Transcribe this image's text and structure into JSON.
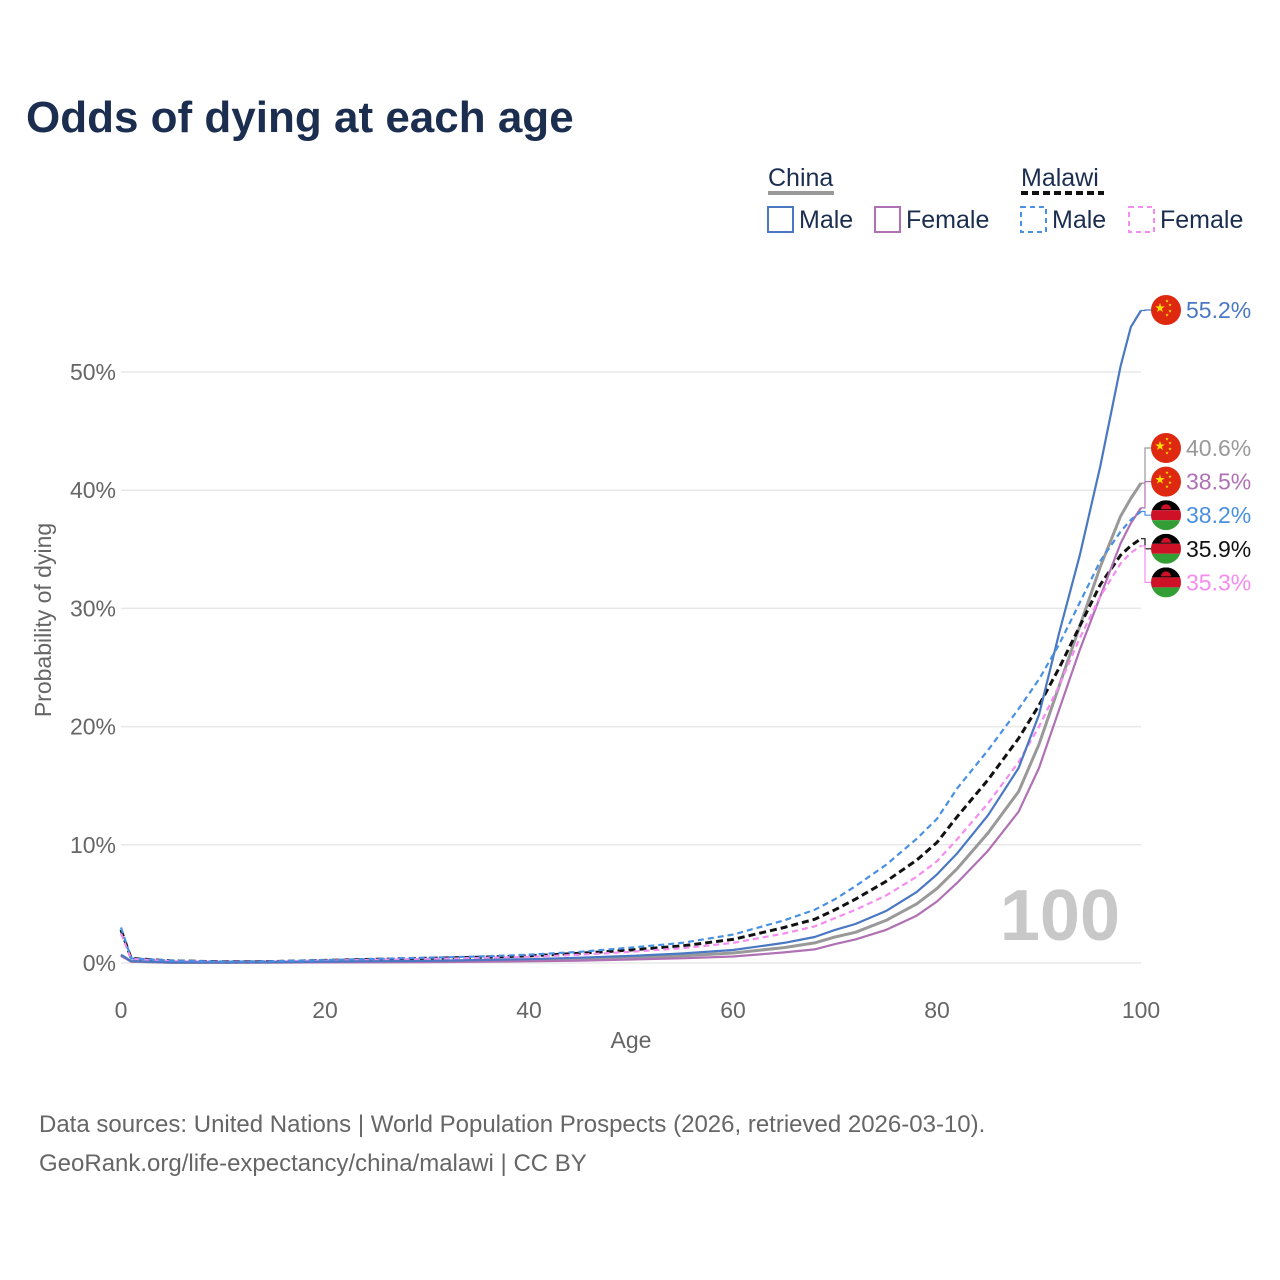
{
  "title": "Odds of dying at each age",
  "legend": {
    "groups": [
      {
        "name": "China",
        "items": [
          {
            "label": "Male",
            "color": "#4a78c2",
            "dashed": false
          },
          {
            "label": "Female",
            "color": "#b071b4",
            "dashed": false
          }
        ]
      },
      {
        "name": "Malawi",
        "items": [
          {
            "label": "Male",
            "color": "#4a90e2",
            "dashed": true
          },
          {
            "label": "Female",
            "color": "#f58cf0",
            "dashed": true
          }
        ]
      }
    ]
  },
  "colors": {
    "china_total": "#999999",
    "malawi_total": "#111111",
    "gridline": "#e8e8e8",
    "title": "#1b2e4f",
    "axis_text": "#666666",
    "watermark": "#c8c8c8"
  },
  "watermark": "100",
  "source_lines": [
    "Data sources: United Nations | World Population Prospects (2026, retrieved 2026-03-10).",
    "GeoRank.org/life-expectancy/china/malawi | CC BY"
  ],
  "chart_data": {
    "type": "line",
    "title": "Odds of dying at each age",
    "xlabel": "Age",
    "ylabel": "Probability of dying",
    "xlim": [
      0,
      100
    ],
    "ylim": [
      0,
      55
    ],
    "x_ticks": [
      0,
      20,
      40,
      60,
      80,
      100
    ],
    "y_ticks": [
      0,
      10,
      20,
      30,
      40,
      50
    ],
    "y_tick_labels": [
      "0%",
      "10%",
      "20%",
      "30%",
      "40%",
      "50%"
    ],
    "x": [
      0,
      1,
      5,
      10,
      15,
      20,
      25,
      30,
      35,
      40,
      45,
      50,
      55,
      60,
      65,
      68,
      70,
      72,
      75,
      78,
      80,
      82,
      85,
      88,
      90,
      92,
      94,
      96,
      98,
      99,
      100
    ],
    "series": [
      {
        "name": "China Male",
        "country": "China",
        "sex": "Male",
        "color": "#4a78c2",
        "dashed": false,
        "end_label": "55.2%",
        "values": [
          0.7,
          0.15,
          0.05,
          0.05,
          0.08,
          0.12,
          0.15,
          0.18,
          0.25,
          0.32,
          0.45,
          0.6,
          0.8,
          1.1,
          1.7,
          2.2,
          2.8,
          3.3,
          4.4,
          6.0,
          7.5,
          9.3,
          12.5,
          16.5,
          21.0,
          28.0,
          34.5,
          42.0,
          50.5,
          53.8,
          55.2
        ]
      },
      {
        "name": "China Female",
        "country": "China",
        "sex": "Female",
        "color": "#b071b4",
        "dashed": false,
        "end_label": "38.5%",
        "values": [
          0.6,
          0.12,
          0.03,
          0.03,
          0.04,
          0.05,
          0.06,
          0.08,
          0.1,
          0.14,
          0.2,
          0.3,
          0.4,
          0.55,
          0.9,
          1.15,
          1.6,
          2.0,
          2.8,
          4.0,
          5.2,
          6.8,
          9.5,
          12.8,
          16.5,
          21.5,
          26.5,
          31.0,
          35.5,
          37.2,
          38.5
        ]
      },
      {
        "name": "China Total",
        "country": "China",
        "sex": "Total",
        "color": "#999999",
        "dashed": false,
        "end_label": "40.6%",
        "values": [
          0.65,
          0.14,
          0.04,
          0.04,
          0.06,
          0.09,
          0.1,
          0.13,
          0.18,
          0.23,
          0.33,
          0.45,
          0.6,
          0.85,
          1.3,
          1.7,
          2.2,
          2.6,
          3.6,
          5.0,
          6.3,
          8.0,
          11.0,
          14.5,
          18.5,
          23.5,
          28.5,
          33.5,
          37.8,
          39.3,
          40.6
        ]
      },
      {
        "name": "Malawi Male",
        "country": "Malawi",
        "sex": "Male",
        "color": "#4a90e2",
        "dashed": true,
        "end_label": "38.2%",
        "values": [
          3.0,
          0.4,
          0.2,
          0.12,
          0.15,
          0.25,
          0.35,
          0.45,
          0.55,
          0.7,
          0.95,
          1.3,
          1.7,
          2.4,
          3.6,
          4.5,
          5.4,
          6.5,
          8.3,
          10.5,
          12.2,
          14.8,
          18.0,
          21.5,
          24.0,
          27.0,
          30.5,
          34.0,
          36.5,
          37.5,
          38.2
        ]
      },
      {
        "name": "Malawi Female",
        "country": "Malawi",
        "sex": "Female",
        "color": "#f58cf0",
        "dashed": true,
        "end_label": "35.3%",
        "values": [
          2.5,
          0.35,
          0.15,
          0.1,
          0.12,
          0.2,
          0.28,
          0.35,
          0.42,
          0.52,
          0.7,
          0.95,
          1.25,
          1.7,
          2.5,
          3.1,
          3.8,
          4.5,
          5.7,
          7.3,
          8.6,
          10.5,
          13.5,
          17.0,
          20.0,
          23.5,
          27.5,
          31.0,
          33.8,
          34.7,
          35.3
        ]
      },
      {
        "name": "Malawi Total",
        "country": "Malawi",
        "sex": "Total",
        "color": "#111111",
        "dashed": true,
        "end_label": "35.9%",
        "values": [
          2.8,
          0.38,
          0.18,
          0.11,
          0.13,
          0.22,
          0.31,
          0.4,
          0.48,
          0.6,
          0.82,
          1.1,
          1.45,
          2.0,
          3.0,
          3.7,
          4.5,
          5.4,
          6.9,
          8.7,
          10.2,
          12.4,
          15.5,
          19.0,
          21.8,
          25.0,
          28.5,
          32.0,
          34.5,
          35.3,
          35.9
        ]
      }
    ],
    "end_label_order": [
      "China Male",
      "China Total",
      "China Female",
      "Malawi Male",
      "Malawi Total",
      "Malawi Female"
    ]
  }
}
